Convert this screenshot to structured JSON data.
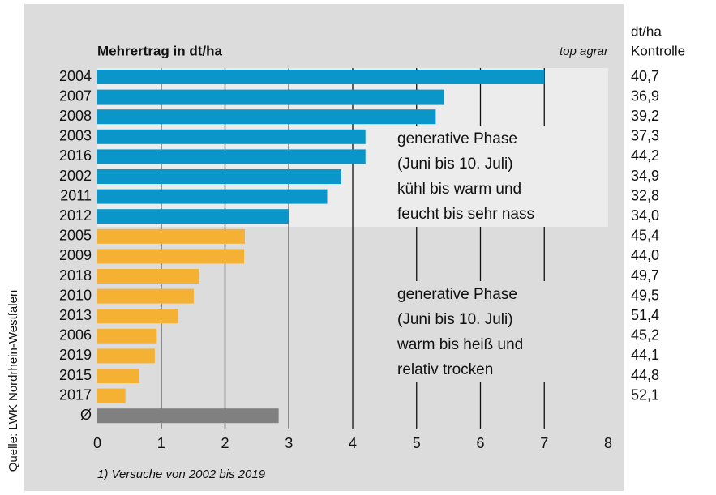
{
  "chart_data": {
    "type": "bar",
    "orientation": "horizontal",
    "title": "Mehrertrag in dt/ha",
    "brand": "top agrar",
    "right_header": [
      "dt/ha",
      "Kontrolle"
    ],
    "categories": [
      "2004",
      "2007",
      "2008",
      "2003",
      "2016",
      "2002",
      "2011",
      "2012",
      "2005",
      "2009",
      "2018",
      "2010",
      "2013",
      "2006",
      "2019",
      "2015",
      "2017",
      "Ø"
    ],
    "values": [
      7.0,
      5.43,
      5.3,
      4.2,
      4.2,
      3.82,
      3.6,
      3.0,
      2.31,
      2.3,
      1.59,
      1.51,
      1.27,
      0.93,
      0.9,
      0.66,
      0.44,
      2.84
    ],
    "colors": [
      "#0b96c9",
      "#0b96c9",
      "#0b96c9",
      "#0b96c9",
      "#0b96c9",
      "#0b96c9",
      "#0b96c9",
      "#0b96c9",
      "#f5b133",
      "#f5b133",
      "#f5b133",
      "#f5b133",
      "#f5b133",
      "#f5b133",
      "#f5b133",
      "#f5b133",
      "#f5b133",
      "#808080"
    ],
    "kontrolle": [
      "40,7",
      "36,9",
      "39,2",
      "37,3",
      "44,2",
      "34,9",
      "32,8",
      "34,0",
      "45,4",
      "44,0",
      "49,7",
      "49,5",
      "51,4",
      "45,2",
      "44,1",
      "44,8",
      "52,1"
    ],
    "xlim": [
      0,
      8
    ],
    "xticks": [
      0,
      1,
      2,
      3,
      4,
      5,
      6,
      7,
      8
    ],
    "grid": true,
    "annotations": [
      {
        "lines": [
          "generative Phase",
          "(Juni bis 10. Juli)",
          "kühl bis warm und",
          "feucht bis sehr nass"
        ]
      },
      {
        "lines": [
          "generative Phase",
          "(Juni bis 10. Juli)",
          "warm bis heiß und",
          "relativ trocken"
        ]
      }
    ],
    "footnote": "1) Versuche von 2002 bis 2019",
    "source": "Quelle: LWK Nordrhein-Westfalen"
  }
}
